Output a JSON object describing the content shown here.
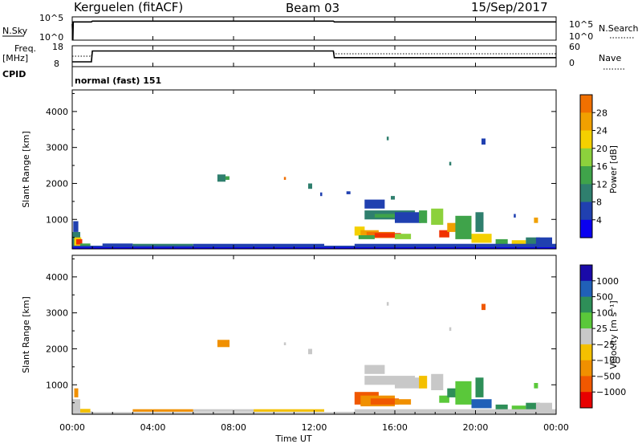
{
  "header": {
    "station": "Kerguelen (fitACF)",
    "beam": "Beam 03",
    "date": "15/Sep/2017"
  },
  "colors": {
    "power_scale": [
      "#0a00f0",
      "#2040b0",
      "#2f7f6e",
      "#3fa34a",
      "#8cd13c",
      "#f4d000",
      "#f0a000",
      "#f07000",
      "#f03000",
      "#e80000"
    ],
    "velocity_scale": [
      "#1a0aa8",
      "#2060b8",
      "#2e8f58",
      "#5ac83a",
      "#c8c8c8",
      "#f4c000",
      "#f09000",
      "#f05800",
      "#e80000"
    ],
    "ground_scatter": "#c0c0c0",
    "trace": "#000000"
  },
  "chart_data": [
    {
      "type": "line",
      "panel": "N.Sky / N.Search",
      "left_label": "N.Sky",
      "right_label": "N.Search",
      "left_ticks": [
        "10^5",
        "10^0"
      ],
      "right_ticks": [
        "10^5",
        "10^0"
      ],
      "series": [
        {
          "name": "N.Sky",
          "style": "solid",
          "x": [
            0.0,
            0.03,
            0.05,
            0.95,
            1.0,
            12.95,
            13.0,
            24.0
          ],
          "y": [
            3.8,
            0.0,
            4.3,
            4.3,
            4.5,
            4.5,
            4.3,
            4.3
          ]
        },
        {
          "name": "N.Search",
          "style": "dotted",
          "x": [
            0.0,
            24.0
          ],
          "y": [
            null,
            null
          ]
        }
      ],
      "ylim": [
        0,
        5.5
      ]
    },
    {
      "type": "line",
      "panel": "Freq / Nave",
      "left_label": "Freq.",
      "left_unit": "[MHz]",
      "right_label": "Nave",
      "left_ticks": [
        "18",
        "8"
      ],
      "right_ticks": [
        "60",
        "0"
      ],
      "series": [
        {
          "name": "Freq.",
          "style": "solid",
          "axis": "left",
          "x": [
            0.0,
            0.05,
            0.95,
            1.0,
            12.95,
            13.0,
            24.0
          ],
          "y": [
            10.3,
            10.3,
            10.3,
            15.5,
            15.5,
            12.3,
            12.3
          ]
        },
        {
          "name": "Nave",
          "style": "dotted",
          "axis": "right",
          "x": [
            0.0,
            0.05,
            0.95,
            1.0,
            12.95,
            13.0,
            24.0
          ],
          "y": [
            30,
            30,
            30,
            45,
            45,
            37,
            37
          ]
        }
      ],
      "ylim": [
        8,
        18
      ]
    },
    {
      "type": "text",
      "panel": "CPID",
      "label": "CPID",
      "value": "normal (fast) 151"
    },
    {
      "type": "heatmap",
      "panel": "Power",
      "ylabel": "Slant Range [km]",
      "ylim": [
        180,
        4600
      ],
      "yticks": [
        1000,
        2000,
        3000,
        4000
      ],
      "colorbar": {
        "label": "Power [dB]",
        "ticks": [
          4,
          8,
          12,
          16,
          20,
          24,
          28
        ],
        "min": 0,
        "max": 32
      },
      "cells": [
        [
          0.0,
          180,
          1.0,
          230,
          3
        ],
        [
          1.0,
          180,
          13.0,
          230,
          2
        ],
        [
          13.0,
          180,
          24.0,
          230,
          2
        ],
        [
          0.0,
          230,
          0.4,
          650,
          7
        ],
        [
          0.1,
          250,
          0.45,
          500,
          18
        ],
        [
          0.2,
          300,
          0.5,
          450,
          28
        ],
        [
          0.05,
          650,
          0.3,
          950,
          4
        ],
        [
          0.4,
          230,
          0.9,
          330,
          12
        ],
        [
          1.5,
          250,
          3.0,
          330,
          6
        ],
        [
          3.0,
          250,
          6.0,
          320,
          8
        ],
        [
          6.0,
          250,
          9.0,
          320,
          5
        ],
        [
          9.0,
          250,
          12.5,
          320,
          4
        ],
        [
          7.2,
          2050,
          7.6,
          2250,
          8
        ],
        [
          7.6,
          2100,
          7.8,
          2200,
          12
        ],
        [
          10.5,
          2100,
          10.6,
          2180,
          24
        ],
        [
          11.7,
          1850,
          11.9,
          2000,
          9
        ],
        [
          12.3,
          1650,
          12.4,
          1750,
          5
        ],
        [
          15.6,
          3200,
          15.7,
          3300,
          8
        ],
        [
          20.3,
          3080,
          20.5,
          3250,
          4
        ],
        [
          14.0,
          550,
          14.5,
          800,
          16
        ],
        [
          14.3,
          520,
          15.2,
          700,
          20
        ],
        [
          14.6,
          480,
          16.0,
          650,
          24
        ],
        [
          15.0,
          500,
          16.3,
          620,
          28
        ],
        [
          14.2,
          450,
          15.0,
          560,
          12
        ],
        [
          16.0,
          450,
          16.8,
          600,
          14
        ],
        [
          14.5,
          1000,
          17.0,
          1250,
          7
        ],
        [
          15.0,
          1050,
          16.5,
          1150,
          12
        ],
        [
          16.0,
          900,
          17.3,
          1200,
          6
        ],
        [
          17.2,
          900,
          17.6,
          1250,
          10
        ],
        [
          17.8,
          850,
          18.4,
          1300,
          14
        ],
        [
          18.2,
          500,
          18.7,
          700,
          28
        ],
        [
          18.6,
          650,
          19.3,
          900,
          20
        ],
        [
          19.0,
          450,
          19.8,
          1100,
          12
        ],
        [
          19.8,
          350,
          20.8,
          600,
          16
        ],
        [
          20.0,
          650,
          20.4,
          1200,
          8
        ],
        [
          21.0,
          300,
          21.6,
          450,
          12
        ],
        [
          21.8,
          300,
          22.5,
          420,
          16
        ],
        [
          22.5,
          300,
          23.2,
          500,
          8
        ],
        [
          23.0,
          250,
          23.8,
          500,
          4
        ],
        [
          14.0,
          230,
          24.0,
          320,
          6
        ],
        [
          14.5,
          1300,
          15.5,
          1550,
          6
        ],
        [
          15.8,
          1550,
          16.0,
          1650,
          8
        ],
        [
          13.6,
          1700,
          13.8,
          1780,
          4
        ],
        [
          21.9,
          1050,
          22.0,
          1150,
          4
        ],
        [
          22.9,
          900,
          23.1,
          1050,
          20
        ],
        [
          18.7,
          2500,
          18.8,
          2600,
          8
        ]
      ]
    },
    {
      "type": "heatmap",
      "panel": "Velocity",
      "ylabel": "Slant Range [km]",
      "xlabel": "Time UT",
      "xlim": [
        0,
        24
      ],
      "xtick_labels": [
        "00:00",
        "04:00",
        "08:00",
        "12:00",
        "16:00",
        "20:00",
        "00:00"
      ],
      "ylim": [
        180,
        4600
      ],
      "yticks": [
        1000,
        2000,
        3000,
        4000
      ],
      "colorbar": {
        "label": "Velocity [m s⁻¹]",
        "ticks": [
          "1000",
          "500",
          "100",
          "25",
          "−25",
          "−100",
          "−500",
          "−1000"
        ]
      },
      "cells": [
        [
          0.0,
          180,
          1.0,
          260,
          4
        ],
        [
          1.0,
          180,
          13.0,
          240,
          4
        ],
        [
          13.0,
          180,
          24.0,
          250,
          4
        ],
        [
          0.0,
          260,
          0.4,
          600,
          4
        ],
        [
          0.1,
          650,
          0.3,
          900,
          6
        ],
        [
          0.4,
          230,
          0.9,
          330,
          5
        ],
        [
          3.0,
          250,
          6.0,
          320,
          6
        ],
        [
          6.0,
          250,
          9.0,
          320,
          4
        ],
        [
          9.0,
          250,
          12.5,
          320,
          5
        ],
        [
          7.2,
          2050,
          7.8,
          2250,
          6
        ],
        [
          10.5,
          2100,
          10.6,
          2180,
          4
        ],
        [
          11.7,
          1850,
          11.9,
          2000,
          4
        ],
        [
          15.6,
          3200,
          15.7,
          3300,
          4
        ],
        [
          20.3,
          3080,
          20.5,
          3250,
          7
        ],
        [
          18.7,
          2500,
          18.8,
          2600,
          4
        ],
        [
          14.0,
          450,
          15.2,
          800,
          7
        ],
        [
          14.3,
          400,
          16.0,
          700,
          6
        ],
        [
          14.8,
          450,
          16.2,
          620,
          7
        ],
        [
          16.0,
          450,
          16.8,
          600,
          6
        ],
        [
          14.5,
          1000,
          17.0,
          1250,
          4
        ],
        [
          15.0,
          1050,
          16.5,
          1150,
          4
        ],
        [
          16.0,
          900,
          17.3,
          1200,
          4
        ],
        [
          17.2,
          900,
          17.6,
          1250,
          5
        ],
        [
          17.8,
          850,
          18.4,
          1300,
          4
        ],
        [
          18.2,
          500,
          18.7,
          700,
          3
        ],
        [
          18.6,
          650,
          19.3,
          900,
          2
        ],
        [
          19.0,
          450,
          19.8,
          1100,
          3
        ],
        [
          19.8,
          350,
          20.8,
          600,
          1
        ],
        [
          20.0,
          650,
          20.4,
          1200,
          2
        ],
        [
          21.0,
          300,
          21.6,
          450,
          2
        ],
        [
          21.8,
          300,
          22.5,
          420,
          3
        ],
        [
          22.5,
          300,
          23.2,
          500,
          2
        ],
        [
          23.0,
          250,
          23.8,
          500,
          4
        ],
        [
          14.0,
          230,
          24.0,
          320,
          4
        ],
        [
          14.5,
          1300,
          15.5,
          1550,
          4
        ],
        [
          22.9,
          900,
          23.1,
          1050,
          3
        ]
      ]
    }
  ]
}
